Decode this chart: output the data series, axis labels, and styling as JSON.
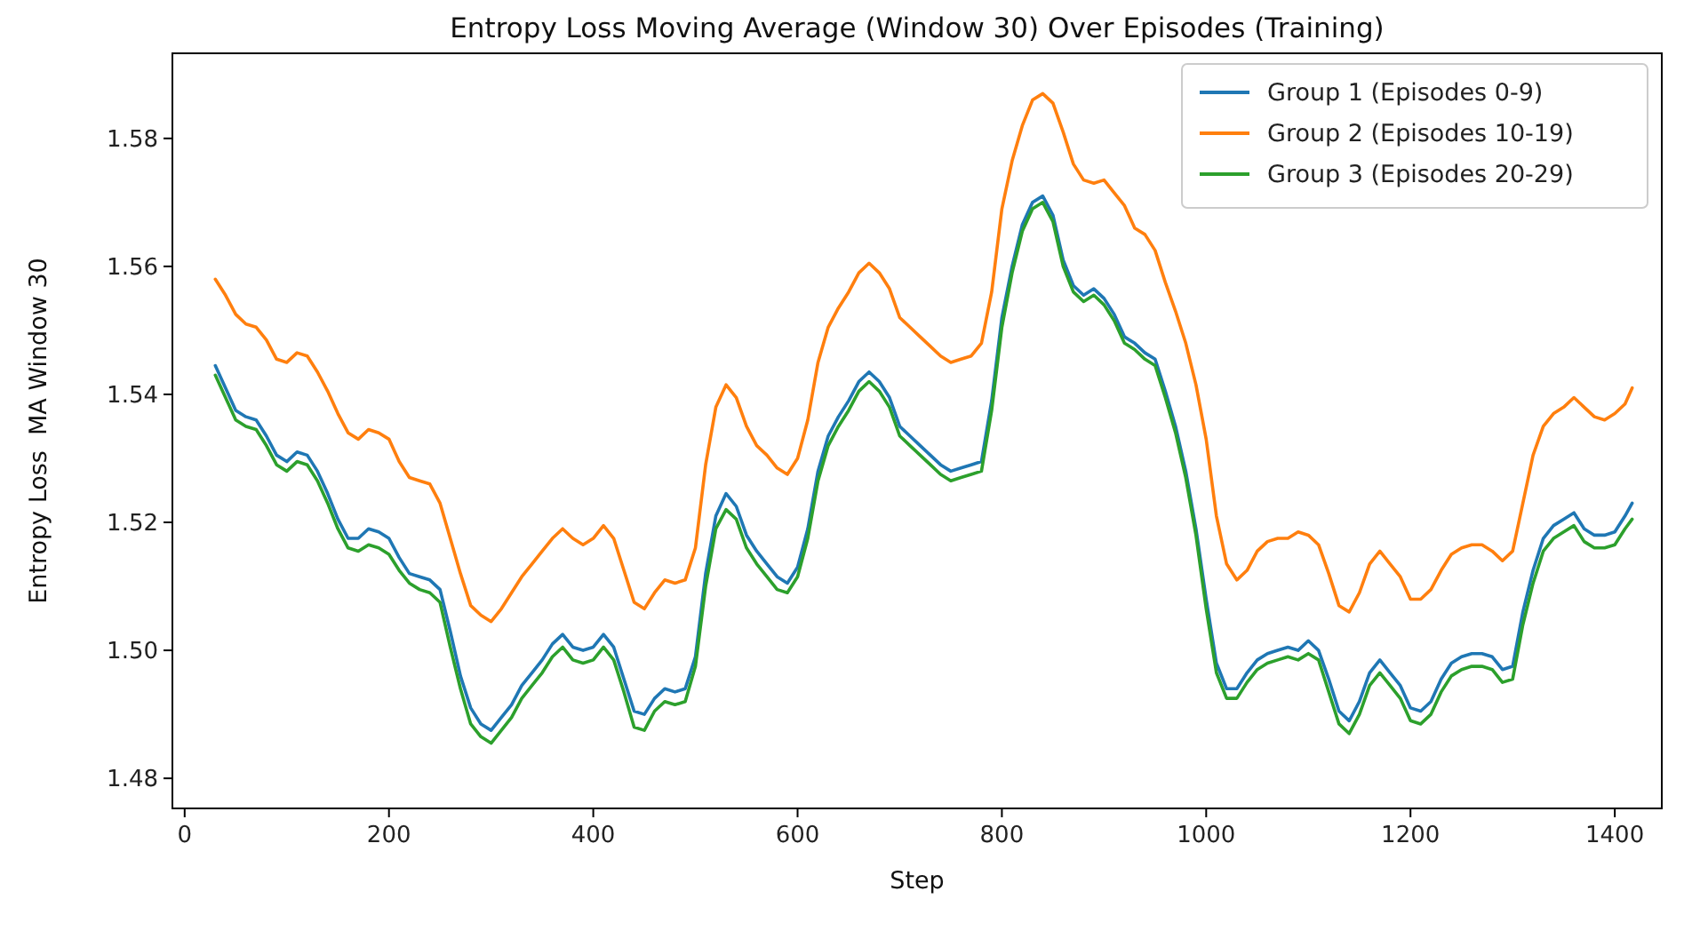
{
  "chart_data": {
    "type": "line",
    "title": "Entropy Loss Moving Average (Window 30) Over Episodes (Training)",
    "xlabel": "Step",
    "ylabel": "Entropy Loss  MA Window 30",
    "x": [
      30,
      40,
      50,
      60,
      70,
      80,
      90,
      100,
      110,
      120,
      130,
      140,
      150,
      160,
      170,
      180,
      190,
      200,
      210,
      220,
      230,
      240,
      250,
      260,
      270,
      280,
      290,
      300,
      310,
      320,
      330,
      340,
      350,
      360,
      370,
      380,
      390,
      400,
      410,
      420,
      430,
      440,
      450,
      460,
      470,
      480,
      490,
      500,
      510,
      520,
      530,
      540,
      550,
      560,
      570,
      580,
      590,
      600,
      610,
      620,
      630,
      640,
      650,
      660,
      670,
      680,
      690,
      700,
      710,
      720,
      730,
      740,
      750,
      760,
      770,
      780,
      790,
      800,
      810,
      820,
      830,
      840,
      850,
      860,
      870,
      880,
      890,
      900,
      910,
      920,
      930,
      940,
      950,
      960,
      970,
      980,
      990,
      1000,
      1010,
      1020,
      1030,
      1040,
      1050,
      1060,
      1070,
      1080,
      1090,
      1100,
      1110,
      1120,
      1130,
      1140,
      1150,
      1160,
      1170,
      1180,
      1190,
      1200,
      1210,
      1220,
      1230,
      1240,
      1250,
      1260,
      1270,
      1280,
      1290,
      1300,
      1310,
      1320,
      1330,
      1340,
      1350,
      1360,
      1370,
      1380,
      1390,
      1400,
      1410,
      1417
    ],
    "series": [
      {
        "name": "Group 1 (Episodes 0-9)",
        "color": "#1f77b4",
        "values": [
          1.5445,
          1.541,
          1.5375,
          1.5365,
          1.536,
          1.5335,
          1.5305,
          1.5295,
          1.531,
          1.5305,
          1.528,
          1.5245,
          1.5205,
          1.5175,
          1.5175,
          1.519,
          1.5185,
          1.5175,
          1.5145,
          1.512,
          1.5115,
          1.511,
          1.5095,
          1.503,
          1.496,
          1.491,
          1.4885,
          1.4875,
          1.4895,
          1.4915,
          1.4945,
          1.4965,
          1.4985,
          1.501,
          1.5025,
          1.5005,
          1.5,
          1.5005,
          1.5025,
          1.5005,
          1.4955,
          1.4905,
          1.49,
          1.4925,
          1.494,
          1.4935,
          1.494,
          1.499,
          1.512,
          1.521,
          1.5245,
          1.5225,
          1.518,
          1.5155,
          1.5135,
          1.5115,
          1.5105,
          1.513,
          1.519,
          1.528,
          1.5335,
          1.5365,
          1.539,
          1.542,
          1.5435,
          1.542,
          1.5395,
          1.535,
          1.5335,
          1.532,
          1.5305,
          1.529,
          1.528,
          1.5285,
          1.529,
          1.5295,
          1.539,
          1.552,
          1.56,
          1.5665,
          1.57,
          1.571,
          1.568,
          1.561,
          1.557,
          1.5555,
          1.5565,
          1.555,
          1.5525,
          1.549,
          1.548,
          1.5465,
          1.5455,
          1.5405,
          1.535,
          1.528,
          1.519,
          1.508,
          1.498,
          1.494,
          1.494,
          1.4965,
          1.4985,
          1.4995,
          1.5,
          1.5005,
          1.5,
          1.5015,
          1.5,
          1.4955,
          1.4905,
          1.489,
          1.492,
          1.4965,
          1.4985,
          1.4965,
          1.4945,
          1.491,
          1.4905,
          1.492,
          1.4955,
          1.498,
          1.499,
          1.4995,
          1.4995,
          1.499,
          1.497,
          1.4975,
          1.506,
          1.5125,
          1.5175,
          1.5195,
          1.5205,
          1.5215,
          1.519,
          1.518,
          1.518,
          1.5185,
          1.521,
          1.523
        ]
      },
      {
        "name": "Group 2 (Episodes 10-19)",
        "color": "#ff7f0e",
        "values": [
          1.558,
          1.5555,
          1.5525,
          1.551,
          1.5505,
          1.5485,
          1.5455,
          1.545,
          1.5465,
          1.546,
          1.5435,
          1.5405,
          1.537,
          1.534,
          1.533,
          1.5345,
          1.534,
          1.533,
          1.5295,
          1.527,
          1.5265,
          1.526,
          1.523,
          1.5175,
          1.512,
          1.507,
          1.5055,
          1.5045,
          1.5065,
          1.509,
          1.5115,
          1.5135,
          1.5155,
          1.5175,
          1.519,
          1.5175,
          1.5165,
          1.5175,
          1.5195,
          1.5175,
          1.5125,
          1.5075,
          1.5065,
          1.509,
          1.511,
          1.5105,
          1.511,
          1.516,
          1.529,
          1.538,
          1.5415,
          1.5395,
          1.535,
          1.532,
          1.5305,
          1.5285,
          1.5275,
          1.53,
          1.536,
          1.545,
          1.5505,
          1.5535,
          1.556,
          1.559,
          1.5605,
          1.559,
          1.5565,
          1.552,
          1.5505,
          1.549,
          1.5475,
          1.546,
          1.545,
          1.5455,
          1.546,
          1.548,
          1.556,
          1.569,
          1.5765,
          1.582,
          1.586,
          1.587,
          1.5855,
          1.581,
          1.576,
          1.5735,
          1.573,
          1.5735,
          1.5715,
          1.5695,
          1.566,
          1.565,
          1.5625,
          1.5575,
          1.553,
          1.548,
          1.5415,
          1.533,
          1.521,
          1.5135,
          1.511,
          1.5125,
          1.5155,
          1.517,
          1.5175,
          1.5175,
          1.5185,
          1.518,
          1.5165,
          1.512,
          1.507,
          1.506,
          1.509,
          1.5135,
          1.5155,
          1.5135,
          1.5115,
          1.508,
          1.508,
          1.5095,
          1.5125,
          1.515,
          1.516,
          1.5165,
          1.5165,
          1.5155,
          1.514,
          1.5155,
          1.523,
          1.5305,
          1.535,
          1.537,
          1.538,
          1.5395,
          1.538,
          1.5365,
          1.536,
          1.537,
          1.5385,
          1.541
        ]
      },
      {
        "name": "Group 3 (Episodes 20-29)",
        "color": "#2ca02c",
        "values": [
          1.543,
          1.5395,
          1.536,
          1.535,
          1.5345,
          1.532,
          1.529,
          1.528,
          1.5295,
          1.529,
          1.5265,
          1.523,
          1.519,
          1.516,
          1.5155,
          1.5165,
          1.516,
          1.515,
          1.5125,
          1.5105,
          1.5095,
          1.509,
          1.5075,
          1.5005,
          1.494,
          1.4885,
          1.4865,
          1.4855,
          1.4875,
          1.4895,
          1.4925,
          1.4945,
          1.4965,
          1.499,
          1.5005,
          1.4985,
          1.498,
          1.4985,
          1.5005,
          1.4985,
          1.4935,
          1.488,
          1.4875,
          1.4905,
          1.492,
          1.4915,
          1.492,
          1.4975,
          1.51,
          1.519,
          1.522,
          1.5205,
          1.516,
          1.5135,
          1.5115,
          1.5095,
          1.509,
          1.5115,
          1.5175,
          1.5265,
          1.532,
          1.535,
          1.5375,
          1.5405,
          1.542,
          1.5405,
          1.538,
          1.5335,
          1.532,
          1.5305,
          1.529,
          1.5275,
          1.5265,
          1.527,
          1.5275,
          1.528,
          1.5375,
          1.5505,
          1.559,
          1.5655,
          1.569,
          1.57,
          1.567,
          1.56,
          1.556,
          1.5545,
          1.5555,
          1.554,
          1.5515,
          1.548,
          1.547,
          1.5455,
          1.5445,
          1.5395,
          1.534,
          1.527,
          1.518,
          1.5065,
          1.4965,
          1.4925,
          1.4925,
          1.495,
          1.497,
          1.498,
          1.4985,
          1.499,
          1.4985,
          1.4995,
          1.4985,
          1.4935,
          1.4885,
          1.487,
          1.49,
          1.4945,
          1.4965,
          1.4945,
          1.4925,
          1.489,
          1.4885,
          1.49,
          1.4935,
          1.496,
          1.497,
          1.4975,
          1.4975,
          1.497,
          1.495,
          1.4955,
          1.504,
          1.5105,
          1.5155,
          1.5175,
          1.5185,
          1.5195,
          1.517,
          1.516,
          1.516,
          1.5165,
          1.519,
          1.5205
        ]
      }
    ],
    "xlim": [
      -12,
      1446
    ],
    "ylim": [
      1.4753,
      1.5933
    ],
    "xticks": [
      0,
      200,
      400,
      600,
      800,
      1000,
      1200,
      1400
    ],
    "yticks": [
      1.48,
      {
        "value": 1.5,
        "label": "1.50"
      },
      1.52,
      1.54,
      1.56,
      1.58
    ],
    "legend": "top right"
  }
}
